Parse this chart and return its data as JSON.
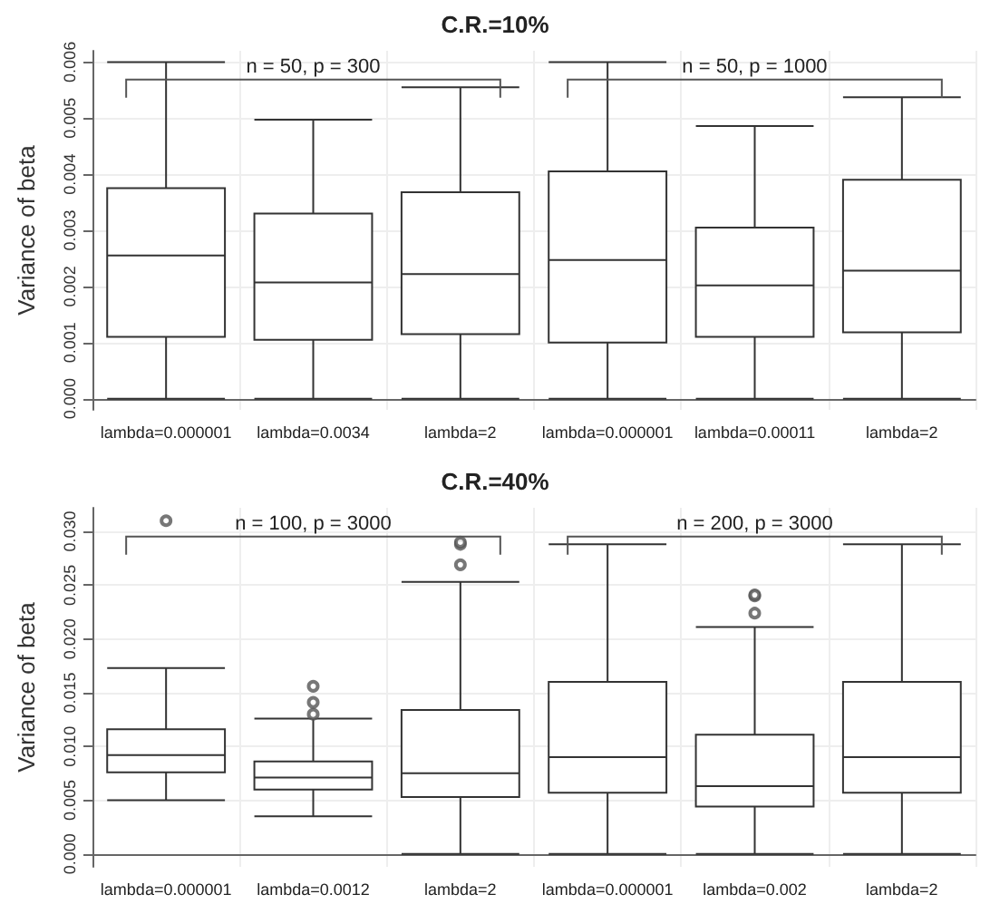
{
  "chart_data": [
    {
      "type": "box",
      "title": "C.R.=10%",
      "ylabel": "Variance of beta",
      "categories": [
        "lambda=0.000001",
        "lambda=0.0034",
        "lambda=2",
        "lambda=0.000001",
        "lambda=0.00011",
        "lambda=2"
      ],
      "boxes": [
        {
          "low": 0,
          "q1": 0.0011,
          "median": 0.00255,
          "q3": 0.00375,
          "high": 0.006
        },
        {
          "low": 0,
          "q1": 0.00105,
          "median": 0.00207,
          "q3": 0.0033,
          "high": 0.00497
        },
        {
          "low": 0,
          "q1": 0.00115,
          "median": 0.00222,
          "q3": 0.00368,
          "high": 0.00555
        },
        {
          "low": 0,
          "q1": 0.001,
          "median": 0.00247,
          "q3": 0.00405,
          "high": 0.006
        },
        {
          "low": 0,
          "q1": 0.0011,
          "median": 0.00202,
          "q3": 0.00305,
          "high": 0.00486
        },
        {
          "low": 0,
          "q1": 0.00118,
          "median": 0.00228,
          "q3": 0.0039,
          "high": 0.00537
        }
      ],
      "ylim": [
        -0.0002,
        0.0062
      ],
      "yticks": [
        {
          "value": 0,
          "label": "0.000"
        },
        {
          "value": 0.001,
          "label": "0.001"
        },
        {
          "value": 0.002,
          "label": "0.002"
        },
        {
          "value": 0.003,
          "label": "0.003"
        },
        {
          "value": 0.004,
          "label": "0.004"
        },
        {
          "value": 0.005,
          "label": "0.005"
        },
        {
          "value": 0.006,
          "label": "0.006"
        }
      ],
      "annotations": [
        "n = 50, p = 300",
        "n = 50, p = 1000"
      ],
      "grid": true,
      "marker": "circle"
    },
    {
      "type": "box",
      "title": "C.R.=40%",
      "ylabel": "Variance of beta",
      "categories": [
        "lambda=0.000001",
        "lambda=0.0012",
        "lambda=2",
        "lambda=0.000001",
        "lambda=0.002",
        "lambda=2"
      ],
      "boxes": [
        {
          "low": 0.005,
          "q1": 0.0076,
          "median": 0.0092,
          "q3": 0.0116,
          "high": 0.0173,
          "outliers": [
            0.031
          ]
        },
        {
          "low": 0.0035,
          "q1": 0.006,
          "median": 0.0071,
          "q3": 0.0086,
          "high": 0.0126,
          "outliers": [
            0.013,
            0.0141,
            0.0156
          ]
        },
        {
          "low": 0,
          "q1": 0.0053,
          "median": 0.0075,
          "q3": 0.0134,
          "high": 0.0253,
          "outliers": [
            0.0269,
            0.0288,
            0.029
          ]
        },
        {
          "low": 0,
          "q1": 0.0057,
          "median": 0.009,
          "q3": 0.016,
          "high": 0.0288
        },
        {
          "low": 0,
          "q1": 0.0044,
          "median": 0.0063,
          "q3": 0.0111,
          "high": 0.0211,
          "outliers": [
            0.0224,
            0.024,
            0.0241
          ]
        },
        {
          "low": 0,
          "q1": 0.0057,
          "median": 0.009,
          "q3": 0.016,
          "high": 0.0288
        }
      ],
      "ylim": [
        -0.0012,
        0.0322
      ],
      "yticks": [
        {
          "value": 0,
          "label": "0.000"
        },
        {
          "value": 0.005,
          "label": "0.005"
        },
        {
          "value": 0.01,
          "label": "0.010"
        },
        {
          "value": 0.015,
          "label": "0.015"
        },
        {
          "value": 0.02,
          "label": "0.020"
        },
        {
          "value": 0.025,
          "label": "0.025"
        },
        {
          "value": 0.03,
          "label": "0.030"
        }
      ],
      "annotations": [
        "n = 100, p = 3000",
        "n = 200, p = 3000"
      ],
      "grid": true,
      "marker": "circle"
    }
  ]
}
